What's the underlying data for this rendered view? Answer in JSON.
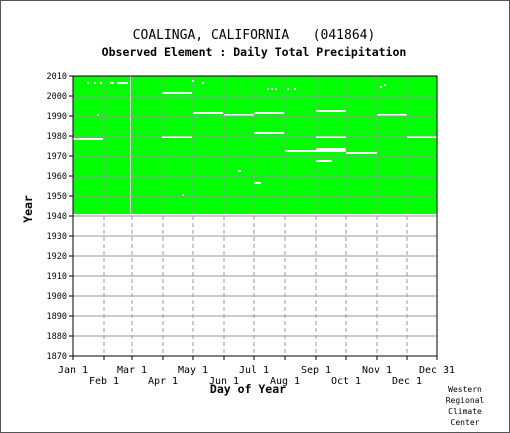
{
  "chart_data": {
    "type": "heatmap",
    "title": "COALINGA, CALIFORNIA   (041864)",
    "subtitle": "Observed Element : Daily Total Precipitation",
    "xlabel": "Day of Year",
    "ylabel": "Year",
    "xlim": [
      1,
      365
    ],
    "ylim": [
      1870,
      2010
    ],
    "x_ticks_top": [
      {
        "label": "Jan 1",
        "day": 1
      },
      {
        "label": "Mar 1",
        "day": 60
      },
      {
        "label": "May 1",
        "day": 121
      },
      {
        "label": "Jul 1",
        "day": 182
      },
      {
        "label": "Sep 1",
        "day": 244
      },
      {
        "label": "Nov 1",
        "day": 305
      },
      {
        "label": "Dec 31",
        "day": 365
      }
    ],
    "x_ticks_bottom": [
      {
        "label": "Feb 1",
        "day": 32
      },
      {
        "label": "Apr 1",
        "day": 91
      },
      {
        "label": "Jun 1",
        "day": 152
      },
      {
        "label": "Aug 1",
        "day": 213
      },
      {
        "label": "Oct 1",
        "day": 274
      },
      {
        "label": "Dec 1",
        "day": 335
      }
    ],
    "y_ticks": [
      1870,
      1880,
      1890,
      1900,
      1910,
      1920,
      1930,
      1940,
      1950,
      1960,
      1970,
      1980,
      1990,
      2000,
      2010
    ],
    "grid": true,
    "data_coverage": {
      "year_start": 1941,
      "year_end": 2010,
      "color": "#00ff00"
    },
    "missing_segments": [
      {
        "year": 1978,
        "day_start": 1,
        "day_end": 30
      },
      {
        "year": 2001,
        "day_start": 90,
        "day_end": 119
      },
      {
        "year": 1979,
        "day_start": 90,
        "day_end": 119
      },
      {
        "year": 1991,
        "day_start": 121,
        "day_end": 150
      },
      {
        "year": 1990,
        "day_start": 152,
        "day_end": 181
      },
      {
        "year": 1991,
        "day_start": 182,
        "day_end": 211
      },
      {
        "year": 1981,
        "day_start": 182,
        "day_end": 211
      },
      {
        "year": 1972,
        "day_start": 213,
        "day_end": 243
      },
      {
        "year": 1992,
        "day_start": 244,
        "day_end": 273
      },
      {
        "year": 1979,
        "day_start": 244,
        "day_end": 273
      },
      {
        "year": 1973,
        "day_start": 244,
        "day_end": 273
      },
      {
        "year": 1972,
        "day_start": 244,
        "day_end": 273
      },
      {
        "year": 1967,
        "day_start": 244,
        "day_end": 259
      },
      {
        "year": 1971,
        "day_start": 274,
        "day_end": 304
      },
      {
        "year": 1990,
        "day_start": 305,
        "day_end": 334
      },
      {
        "year": 1979,
        "day_start": 335,
        "day_end": 365
      },
      {
        "year": 1962,
        "day_start": 166,
        "day_end": 168
      },
      {
        "year": 1956,
        "day_start": 182,
        "day_end": 188
      },
      {
        "year": 2006,
        "day_start": 45,
        "day_end": 55
      }
    ],
    "missing_days": [
      {
        "year": 2006,
        "day": 15
      },
      {
        "year": 2006,
        "day": 22
      },
      {
        "year": 2006,
        "day": 28
      },
      {
        "year": 2006,
        "day": 38
      },
      {
        "year": 2006,
        "day": 40
      },
      {
        "year": 2006,
        "day": 130
      },
      {
        "year": 2007,
        "day": 120
      },
      {
        "year": 2003,
        "day": 195
      },
      {
        "year": 2003,
        "day": 199
      },
      {
        "year": 2003,
        "day": 203
      },
      {
        "year": 2003,
        "day": 215
      },
      {
        "year": 2003,
        "day": 222
      },
      {
        "year": 2004,
        "day": 308
      },
      {
        "year": 2005,
        "day": 312
      },
      {
        "year": 1950,
        "day": 110
      },
      {
        "year": 1990,
        "day": 25
      }
    ],
    "missing_day_columns": [
      {
        "day": 58,
        "year_start": 1941,
        "year_end": 2010
      }
    ],
    "colors": {
      "present": "#00ff00",
      "missing": "#ffffff",
      "grid": "#999999",
      "axis": "#000000"
    }
  },
  "credit": {
    "line1": "Western",
    "line2": "Regional",
    "line3": "Climate",
    "line4": "Center"
  }
}
